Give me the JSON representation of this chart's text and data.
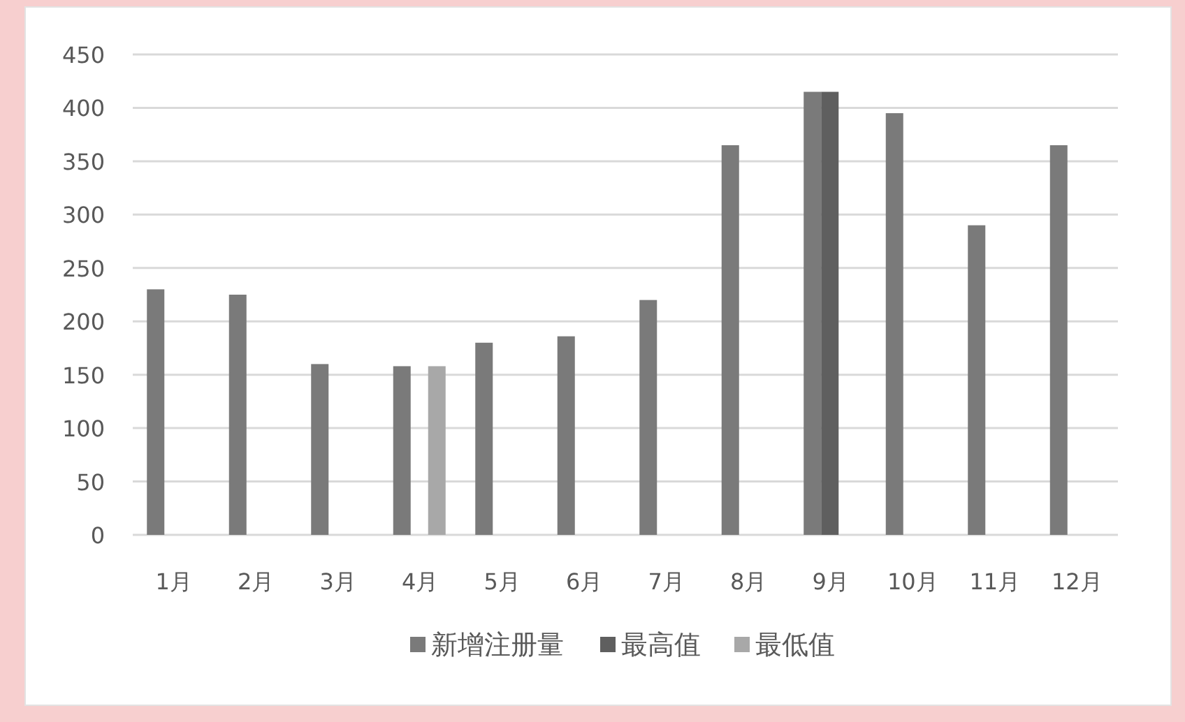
{
  "chart_data": {
    "type": "bar",
    "categories": [
      "1月",
      "2月",
      "3月",
      "4月",
      "5月",
      "6月",
      "7月",
      "8月",
      "9月",
      "10月",
      "11月",
      "12月"
    ],
    "series": [
      {
        "name": "新增注册量",
        "color": "#7a7a7a",
        "values": [
          230,
          225,
          160,
          158,
          180,
          186,
          220,
          365,
          415,
          395,
          290,
          365
        ]
      },
      {
        "name": "最高值",
        "color": "#5f5f5f",
        "values": [
          null,
          null,
          null,
          null,
          null,
          null,
          null,
          null,
          415,
          null,
          null,
          null
        ]
      },
      {
        "name": "最低值",
        "color": "#a8a8a8",
        "values": [
          null,
          null,
          null,
          158,
          null,
          null,
          null,
          null,
          null,
          null,
          null,
          null
        ]
      }
    ],
    "ylim": [
      0,
      450
    ],
    "yticks": [
      0,
      50,
      100,
      150,
      200,
      250,
      300,
      350,
      400,
      450
    ],
    "grid": "y",
    "legend": "bottom"
  }
}
